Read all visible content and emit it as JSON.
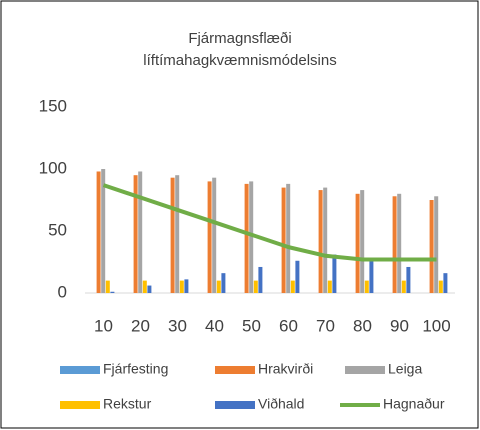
{
  "chart_data": {
    "type": "bar",
    "title": "Fjármagnsflæði líftímahagkvæmnismódelsins",
    "categories": [
      "10",
      "20",
      "30",
      "40",
      "50",
      "60",
      "70",
      "80",
      "90",
      "100"
    ],
    "series": [
      {
        "name": "Fjárfesting",
        "color": "#5b9bd5",
        "values": [
          0,
          0,
          0,
          0,
          0,
          0,
          0,
          0,
          0,
          0
        ]
      },
      {
        "name": "Hrakvirði",
        "color": "#ed7d31",
        "values": [
          98,
          95,
          93,
          90,
          88,
          85,
          83,
          80,
          78,
          75
        ]
      },
      {
        "name": "Leiga",
        "color": "#a5a5a5",
        "values": [
          100,
          98,
          95,
          93,
          90,
          88,
          85,
          83,
          80,
          78
        ]
      },
      {
        "name": "Rekstur",
        "color": "#ffc000",
        "values": [
          10,
          10,
          10,
          10,
          10,
          10,
          10,
          10,
          10,
          10
        ]
      },
      {
        "name": "Viðhald",
        "color": "#4472c4",
        "values": [
          1,
          6,
          11,
          16,
          21,
          26,
          31,
          26,
          21,
          16
        ]
      },
      {
        "name": "Hagnaður",
        "color": "#70ad47",
        "type": "line",
        "values": [
          87,
          77,
          67,
          57,
          47,
          37,
          30,
          27,
          27,
          27
        ]
      }
    ],
    "ylim": [
      0,
      150
    ],
    "yticks": [
      0,
      50,
      100,
      150
    ],
    "grid": false
  }
}
